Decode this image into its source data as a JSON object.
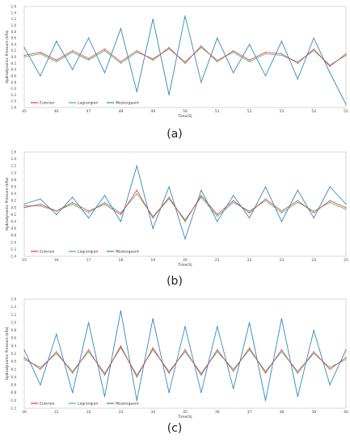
{
  "colors": {
    "eulerian": "#e8323a",
    "lagrangian": "#3cb371",
    "westergaard": "#2c8bbf"
  },
  "chart_data": [
    {
      "type": "line",
      "caption": "(a)",
      "ylabel": "Hydrodynamic Pressure (kPa)",
      "xlabel": "Time(S)",
      "xlim": [
        45,
        55
      ],
      "ylim": [
        -1.6,
        1.6
      ],
      "xticks": [
        45,
        46,
        47,
        48,
        49,
        50,
        51,
        52,
        53,
        54,
        55
      ],
      "yticks": [
        1.6,
        1.4,
        1.2,
        1.0,
        0.8,
        0.6,
        0.4,
        0.2,
        0.0,
        -0.2,
        -0.4,
        -0.6,
        -0.8,
        -1.0,
        -1.2,
        -1.4,
        -1.6
      ],
      "grid": false,
      "legend_position": "bottom-left",
      "series": [
        {
          "name": "Eulerian",
          "x": [
            45,
            45.5,
            46,
            46.5,
            47,
            47.5,
            48,
            48.5,
            49,
            49.5,
            50,
            50.5,
            51,
            51.5,
            52,
            52.5,
            53,
            53.5,
            54,
            54.5,
            55
          ],
          "values": [
            0.05,
            0.15,
            -0.1,
            0.2,
            -0.05,
            0.25,
            -0.15,
            0.2,
            -0.1,
            0.3,
            -0.2,
            0.35,
            -0.15,
            0.2,
            -0.1,
            0.15,
            0.1,
            -0.2,
            0.25,
            -0.3,
            0.1
          ]
        },
        {
          "name": "Lagrangian",
          "x": [
            45,
            45.5,
            46,
            46.5,
            47,
            47.5,
            48,
            48.5,
            49,
            49.5,
            50,
            50.5,
            51,
            51.5,
            52,
            52.5,
            53,
            53.5,
            54,
            54.5,
            55
          ],
          "values": [
            0.0,
            0.1,
            -0.15,
            0.15,
            -0.1,
            0.2,
            -0.2,
            0.15,
            -0.05,
            0.25,
            -0.15,
            0.3,
            -0.1,
            0.15,
            -0.15,
            0.1,
            0.05,
            -0.15,
            0.2,
            -0.25,
            0.05
          ]
        },
        {
          "name": "Westergaard",
          "x": [
            45,
            45.5,
            46,
            46.5,
            47,
            47.5,
            48,
            48.5,
            49,
            49.5,
            50,
            50.5,
            51,
            51.5,
            52,
            52.5,
            53,
            53.5,
            54,
            54.5,
            55
          ],
          "values": [
            0.3,
            -0.6,
            0.5,
            -0.4,
            0.6,
            -0.5,
            0.9,
            -1.1,
            1.2,
            -1.2,
            1.3,
            -0.8,
            0.6,
            -0.5,
            0.4,
            -0.6,
            0.5,
            -0.7,
            0.6,
            -0.5,
            -1.5
          ]
        }
      ]
    },
    {
      "type": "line",
      "caption": "(b)",
      "ylabel": "Hydrodynamic Pressure (kPa)",
      "xlabel": "Time(S)",
      "xlim": [
        15,
        25
      ],
      "ylim": [
        -1.4,
        1.6
      ],
      "xticks": [
        15,
        16,
        17,
        18,
        19,
        20,
        21,
        22,
        23,
        24,
        25
      ],
      "yticks": [
        1.6,
        1.4,
        1.2,
        1.0,
        0.8,
        0.6,
        0.4,
        0.2,
        0.0,
        -0.2,
        -0.4,
        -0.6,
        -0.8,
        -1.0,
        -1.2,
        -1.4
      ],
      "grid": false,
      "legend_position": "bottom-left",
      "series": [
        {
          "name": "Eulerian",
          "x": [
            15,
            15.5,
            16,
            16.5,
            17,
            17.5,
            18,
            18.5,
            19,
            19.5,
            20,
            20.5,
            21,
            21.5,
            22,
            22.5,
            23,
            23.5,
            24,
            24.5,
            25
          ],
          "values": [
            0.0,
            0.1,
            -0.1,
            0.15,
            -0.1,
            0.1,
            -0.2,
            0.5,
            -0.3,
            0.3,
            -0.4,
            0.35,
            -0.2,
            0.2,
            -0.15,
            0.25,
            -0.1,
            0.2,
            -0.15,
            0.2,
            0.0
          ]
        },
        {
          "name": "Lagrangian",
          "x": [
            15,
            15.5,
            16,
            16.5,
            17,
            17.5,
            18,
            18.5,
            19,
            19.5,
            20,
            20.5,
            21,
            21.5,
            22,
            22.5,
            23,
            23.5,
            24,
            24.5,
            25
          ],
          "values": [
            0.05,
            0.05,
            -0.1,
            0.1,
            -0.15,
            0.15,
            -0.15,
            0.4,
            -0.25,
            0.25,
            -0.35,
            0.3,
            -0.25,
            0.15,
            -0.1,
            0.2,
            -0.15,
            0.15,
            -0.1,
            0.15,
            -0.05
          ]
        },
        {
          "name": "Westergaard",
          "x": [
            15,
            15.5,
            16,
            16.5,
            17,
            17.5,
            18,
            18.5,
            19,
            19.5,
            20,
            20.5,
            21,
            21.5,
            22,
            22.5,
            23,
            23.5,
            24,
            24.5,
            25
          ],
          "values": [
            0.1,
            0.25,
            -0.2,
            0.3,
            -0.3,
            0.35,
            -0.4,
            1.2,
            -0.6,
            0.6,
            -0.9,
            0.5,
            -0.4,
            0.35,
            -0.3,
            0.6,
            -0.4,
            0.5,
            -0.3,
            0.6,
            0.1
          ]
        }
      ]
    },
    {
      "type": "line",
      "caption": "(c)",
      "ylabel": "Hydrodynamic Pressure (kPa)",
      "xlabel": "Time(S)",
      "xlim": [
        30,
        40
      ],
      "ylim": [
        -1.2,
        1.6
      ],
      "xticks": [
        30,
        31,
        32,
        33,
        34,
        35,
        36,
        37,
        38,
        39,
        40
      ],
      "yticks": [
        1.6,
        1.4,
        1.2,
        1.0,
        0.8,
        0.6,
        0.4,
        0.2,
        0.0,
        -0.2,
        -0.4,
        -0.6,
        -0.8,
        -1.0,
        -1.2
      ],
      "grid": false,
      "legend_position": "bottom-left",
      "series": [
        {
          "name": "Eulerian",
          "x": [
            30,
            30.5,
            31,
            31.5,
            32,
            32.5,
            33,
            33.5,
            34,
            34.5,
            35,
            35.5,
            36,
            36.5,
            37,
            37.5,
            38,
            38.5,
            39,
            39.5,
            40
          ],
          "values": [
            0.1,
            -0.2,
            0.25,
            -0.3,
            0.3,
            -0.35,
            0.4,
            -0.4,
            0.35,
            -0.3,
            0.3,
            -0.35,
            0.3,
            -0.25,
            0.35,
            -0.3,
            0.3,
            -0.3,
            0.25,
            -0.2,
            0.1
          ]
        },
        {
          "name": "Lagrangian",
          "x": [
            30,
            30.5,
            31,
            31.5,
            32,
            32.5,
            33,
            33.5,
            34,
            34.5,
            35,
            35.5,
            36,
            36.5,
            37,
            37.5,
            38,
            38.5,
            39,
            39.5,
            40
          ],
          "values": [
            0.05,
            -0.15,
            0.2,
            -0.25,
            0.25,
            -0.3,
            0.35,
            -0.35,
            0.3,
            -0.25,
            0.25,
            -0.3,
            0.25,
            -0.2,
            0.3,
            -0.25,
            0.25,
            -0.25,
            0.2,
            -0.15,
            0.05
          ]
        },
        {
          "name": "Westergaard",
          "x": [
            30,
            30.5,
            31,
            31.5,
            32,
            32.5,
            33,
            33.5,
            34,
            34.5,
            35,
            35.5,
            36,
            36.5,
            37,
            37.5,
            38,
            38.5,
            39,
            39.5,
            40
          ],
          "values": [
            0.3,
            -0.6,
            0.7,
            -0.8,
            1.0,
            -0.9,
            1.3,
            -1.0,
            1.1,
            -0.8,
            0.9,
            -0.8,
            0.9,
            -0.7,
            1.0,
            -1.0,
            1.1,
            -0.9,
            0.8,
            -0.6,
            0.3
          ]
        }
      ]
    }
  ]
}
